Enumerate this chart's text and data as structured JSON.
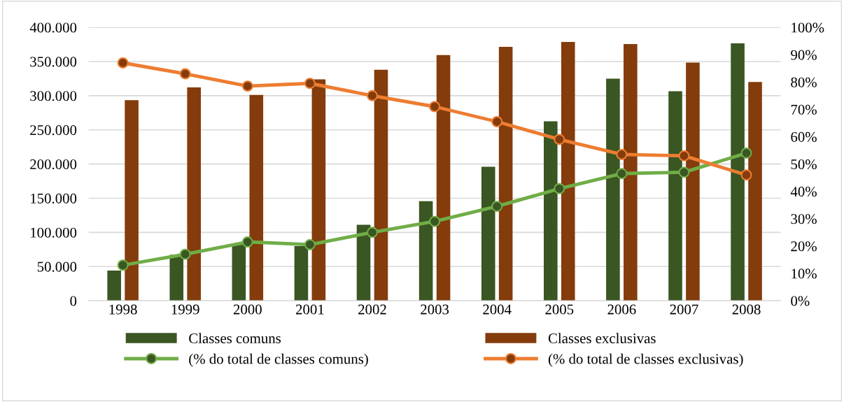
{
  "chart_data": {
    "type": "bar",
    "categories": [
      "1998",
      "1999",
      "2000",
      "2001",
      "2002",
      "2003",
      "2004",
      "2005",
      "2006",
      "2007",
      "2008"
    ],
    "series": [
      {
        "name": "Classes comuns",
        "color": "#3a5623",
        "values": [
          44000,
          67000,
          82000,
          80000,
          111000,
          145500,
          196000,
          262500,
          325000,
          306500,
          376500
        ]
      },
      {
        "name": "Classes exclusivas",
        "color": "#843c0c",
        "values": [
          293500,
          312000,
          301000,
          324000,
          338000,
          359500,
          371500,
          378500,
          375500,
          348500,
          320000
        ]
      },
      {
        "name": "(% do total de classes comuns)",
        "type": "line",
        "axis": "y2",
        "color": "#70ad47",
        "values": [
          13,
          17,
          21.5,
          20.5,
          25,
          29,
          34.5,
          41,
          46.5,
          47,
          54
        ]
      },
      {
        "name": "(% do total de classes exclusivas)",
        "type": "line",
        "axis": "y2",
        "color": "#ed7d31",
        "values": [
          87,
          83,
          78.5,
          79.5,
          75,
          71,
          65.5,
          59,
          53.5,
          53,
          46
        ]
      }
    ],
    "ylim": [
      0,
      400000
    ],
    "yticks": [
      0,
      {
        "value": 50000,
        "label": "50.000"
      },
      {
        "value": 100000,
        "label": "100.000"
      },
      {
        "value": 150000,
        "label": "150.000"
      },
      {
        "value": 200000,
        "label": "200.000"
      },
      {
        "value": 250000,
        "label": "250.000"
      },
      {
        "value": 300000,
        "label": "300.000"
      },
      {
        "value": 350000,
        "label": "350.000"
      },
      {
        "value": 400000,
        "label": "400.000"
      }
    ],
    "y2lim": [
      0,
      100
    ],
    "y2ticks": [
      {
        "value": 0,
        "label": "0%"
      },
      {
        "value": 10,
        "label": "10%"
      },
      {
        "value": 20,
        "label": "20%"
      },
      {
        "value": 30,
        "label": "30%"
      },
      {
        "value": 40,
        "label": "40%"
      },
      {
        "value": 50,
        "label": "50%"
      },
      {
        "value": 60,
        "label": "60%"
      },
      {
        "value": 70,
        "label": "70%"
      },
      {
        "value": 80,
        "label": "80%"
      },
      {
        "value": 90,
        "label": "90%"
      },
      {
        "value": 100,
        "label": "100%"
      }
    ],
    "grid": "y",
    "legend": "bottom",
    "marker": "circle",
    "line_style": "solid"
  }
}
